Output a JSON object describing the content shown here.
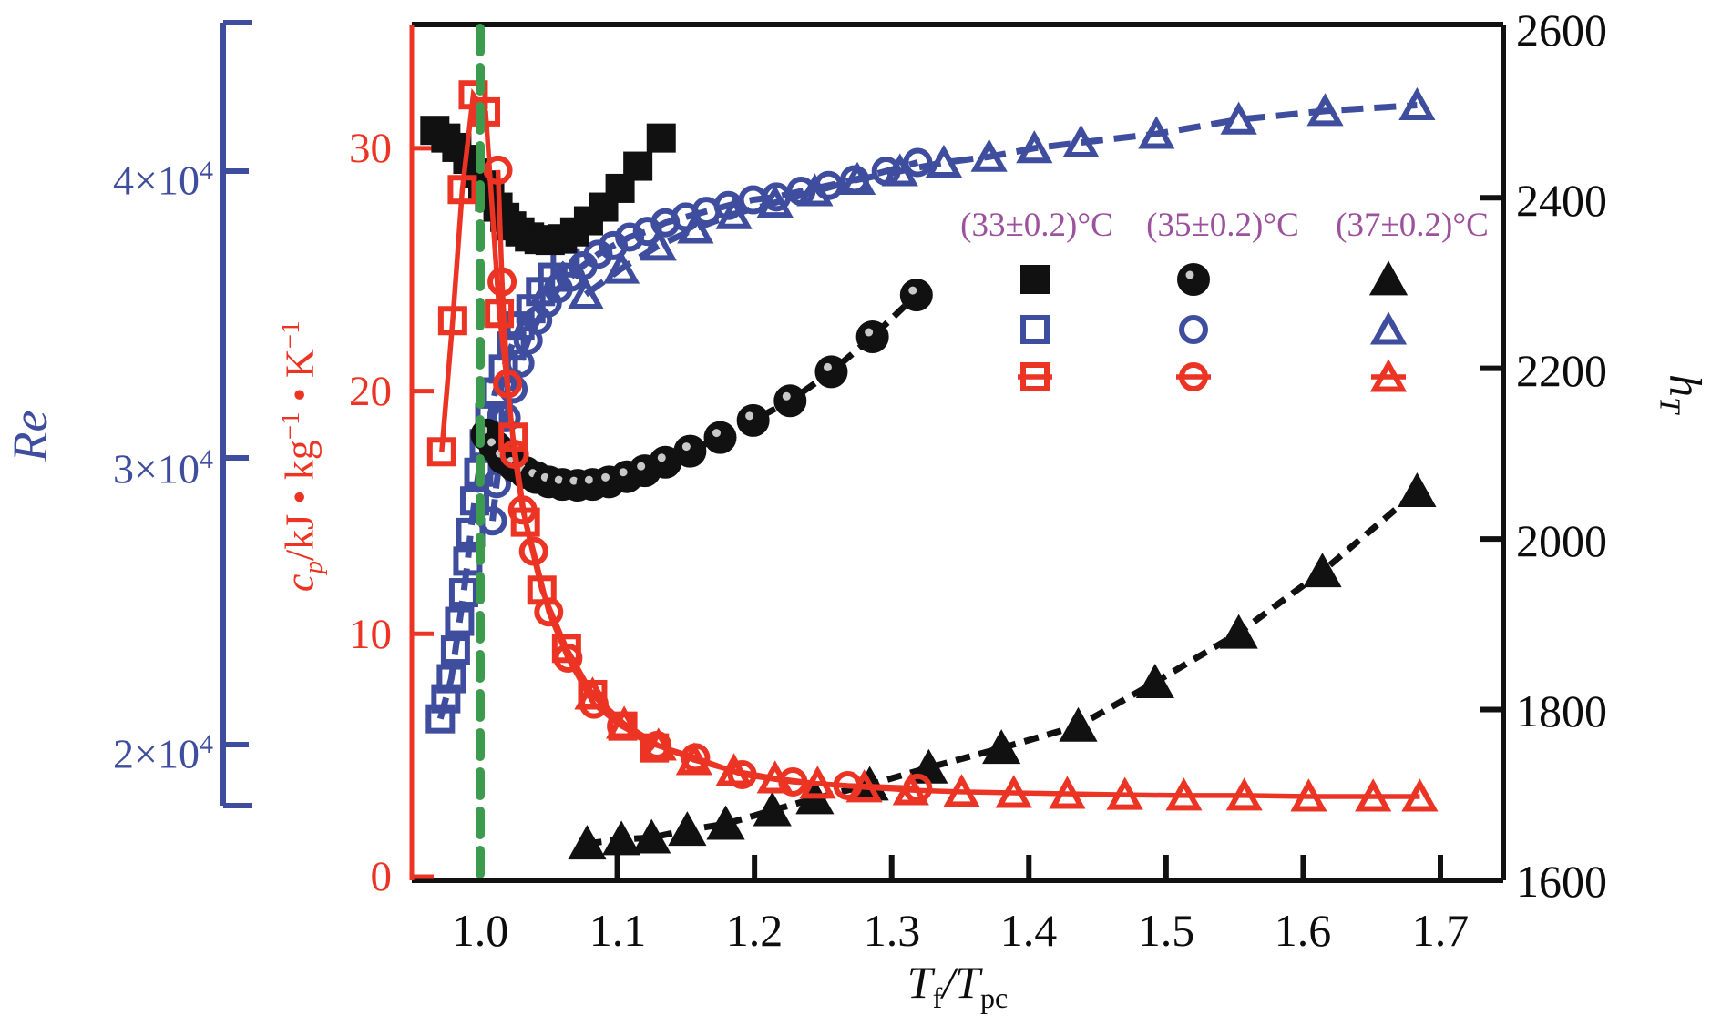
{
  "figure": {
    "background": "#ffffff",
    "colors": {
      "navy": "#3F4D9E",
      "red": "#EC3424",
      "green": "#3C9B4C",
      "purple": "#9C519D",
      "black": "#111111"
    },
    "axes": {
      "x": {
        "label": {
          "t1": "T",
          "s1": "f",
          "slash": "/",
          "t2": "T",
          "s2": "pc"
        },
        "ticks": [
          {
            "label": "1.0",
            "value": 1.0
          },
          {
            "label": "1.1",
            "value": 1.1
          },
          {
            "label": "1.2",
            "value": 1.2
          },
          {
            "label": "1.3",
            "value": 1.3
          },
          {
            "label": "1.4",
            "value": 1.4
          },
          {
            "label": "1.5",
            "value": 1.5
          },
          {
            "label": "1.6",
            "value": 1.6
          },
          {
            "label": "1.7",
            "value": 1.7
          }
        ]
      },
      "re": {
        "name": "Re",
        "ticks": [
          {
            "base": "2×10",
            "sup": "4",
            "value": 20000
          },
          {
            "base": "3×10",
            "sup": "4",
            "value": 30000
          },
          {
            "base": "4×10",
            "sup": "4",
            "value": 40000
          }
        ]
      },
      "cp": {
        "label": {
          "c": "c",
          "csub": "p",
          "mid": "/kJ • kg",
          "sup1": "−1",
          "dot": " • K",
          "sup2": "−1"
        },
        "ticks": [
          {
            "label": "0",
            "value": 0
          },
          {
            "label": "10",
            "value": 10
          },
          {
            "label": "20",
            "value": 20
          },
          {
            "label": "30",
            "value": 30
          }
        ]
      },
      "ht": {
        "label": {
          "base": "h",
          "sub": "T"
        },
        "ticks": [
          {
            "label": "1600",
            "value": 1600
          },
          {
            "label": "1800",
            "value": 1800
          },
          {
            "label": "2000",
            "value": 2000
          },
          {
            "label": "2200",
            "value": 2200
          },
          {
            "label": "2400",
            "value": 2400
          },
          {
            "label": "2600",
            "value": 2600
          }
        ]
      }
    }
  },
  "legend": {
    "headers": [
      "(33±0.2)°C",
      "(35±0.2)°C",
      "(37±0.2)°C"
    ],
    "rows": [
      {
        "color": "#111111",
        "filled": true,
        "hbar": false
      },
      {
        "color": "#3F4D9E",
        "filled": false,
        "hbar": false
      },
      {
        "color": "#EC3424",
        "filled": false,
        "hbar": true
      }
    ],
    "column_markers": [
      "square",
      "circle",
      "triangle"
    ]
  },
  "chart_data": {
    "type": "scatter",
    "title": "",
    "xlabel": "Tf/Tpc",
    "x_range": [
      0.951,
      1.745
    ],
    "critical_line": {
      "x": 1.0,
      "color": "#3C9B4C",
      "style": "dashed"
    },
    "axis_ranges": {
      "cp": [
        0,
        35.2
      ],
      "ht": [
        1600,
        2603
      ],
      "re": [
        17900,
        45200
      ]
    },
    "series": [
      {
        "id": "ht-33C",
        "temp": "(33±0.2)°C",
        "axis": "ht",
        "marker": "square",
        "filled": true,
        "color": "#111111",
        "dash": "16 10",
        "x": [
          0.967,
          0.975,
          0.983,
          0.991,
          0.997,
          1.002,
          1.007,
          1.013,
          1.018,
          1.023,
          1.029,
          1.036,
          1.043,
          1.051,
          1.06,
          1.069,
          1.079,
          1.09,
          1.102,
          1.115,
          1.132
        ],
        "y": [
          2479,
          2470,
          2459,
          2445,
          2429,
          2415,
          2401,
          2389,
          2377,
          2367,
          2360,
          2354,
          2351,
          2350,
          2352,
          2360,
          2373,
          2389,
          2411,
          2437,
          2470
        ]
      },
      {
        "id": "ht-35C",
        "temp": "(35±0.2)°C",
        "axis": "ht",
        "marker": "circle",
        "filled": true,
        "color": "#111111",
        "dash": "16 10",
        "x": [
          1.005,
          1.011,
          1.017,
          1.025,
          1.033,
          1.041,
          1.05,
          1.06,
          1.071,
          1.082,
          1.094,
          1.107,
          1.12,
          1.135,
          1.153,
          1.175,
          1.199,
          1.226,
          1.256,
          1.286,
          1.318
        ],
        "y": [
          2122,
          2108,
          2095,
          2086,
          2078,
          2072,
          2067,
          2064,
          2063,
          2064,
          2067,
          2073,
          2080,
          2090,
          2103,
          2119,
          2139,
          2162,
          2196,
          2237,
          2286
        ]
      },
      {
        "id": "ht-37C",
        "temp": "(37±0.2)°C",
        "axis": "ht",
        "marker": "triangle",
        "filled": true,
        "color": "#111111",
        "dash": "16 10",
        "x": [
          1.078,
          1.103,
          1.125,
          1.151,
          1.179,
          1.213,
          1.244,
          1.284,
          1.327,
          1.38,
          1.436,
          1.492,
          1.553,
          1.614,
          1.683
        ],
        "y": [
          1643,
          1648,
          1650,
          1659,
          1666,
          1682,
          1696,
          1712,
          1732,
          1755,
          1781,
          1832,
          1890,
          1962,
          2056
        ]
      },
      {
        "id": "re-33C",
        "temp": "(33±0.2)°C",
        "axis": "re",
        "marker": "square",
        "filled": false,
        "color": "#3F4D9E",
        "dash": "24 12",
        "x": [
          0.971,
          0.975,
          0.979,
          0.982,
          0.985,
          0.988,
          0.991,
          0.993,
          0.996,
          0.999,
          1.003,
          1.007,
          1.011,
          1.017,
          1.023,
          1.029,
          1.037,
          1.044,
          1.053,
          1.062
        ],
        "y": [
          20900,
          21600,
          22300,
          23300,
          24300,
          25300,
          26400,
          27400,
          28500,
          29500,
          30500,
          31400,
          32300,
          33100,
          33900,
          34600,
          35200,
          35800,
          36300,
          36800
        ]
      },
      {
        "id": "re-35C",
        "temp": "(35±0.2)°C",
        "axis": "re",
        "marker": "circle",
        "filled": false,
        "color": "#3F4D9E",
        "dash": "24 12",
        "x": [
          1.009,
          1.012,
          1.015,
          1.019,
          1.024,
          1.029,
          1.035,
          1.042,
          1.049,
          1.057,
          1.066,
          1.075,
          1.086,
          1.097,
          1.109,
          1.122,
          1.135,
          1.15,
          1.165,
          1.181,
          1.199,
          1.216,
          1.234,
          1.254,
          1.273,
          1.296,
          1.319
        ],
        "y": [
          27800,
          29100,
          30300,
          31400,
          32400,
          33300,
          34100,
          34800,
          35400,
          35900,
          36300,
          36700,
          37100,
          37400,
          37700,
          37900,
          38200,
          38400,
          38600,
          38800,
          39000,
          39100,
          39300,
          39500,
          39700,
          40000,
          40300
        ]
      },
      {
        "id": "re-37C",
        "temp": "(37±0.2)°C",
        "axis": "re",
        "marker": "triangle",
        "filled": false,
        "color": "#3F4D9E",
        "dash": "24 12",
        "x": [
          1.077,
          1.103,
          1.13,
          1.157,
          1.185,
          1.215,
          1.244,
          1.275,
          1.306,
          1.338,
          1.371,
          1.404,
          1.438,
          1.493,
          1.553,
          1.616,
          1.683
        ],
        "y": [
          35700,
          36600,
          37400,
          38000,
          38500,
          38900,
          39300,
          39700,
          40000,
          40300,
          40500,
          40800,
          41000,
          41300,
          41800,
          42100,
          42300
        ]
      },
      {
        "id": "cp-33C",
        "temp": "(33±0.2)°C",
        "axis": "cp",
        "marker": "square",
        "filled": false,
        "color": "#EC3424",
        "dash": "",
        "x": [
          0.972,
          0.98,
          0.987,
          0.995,
          1.004,
          1.014,
          1.024,
          1.033,
          1.045,
          1.063,
          1.082,
          1.104,
          1.127
        ],
        "y": [
          17.5,
          22.9,
          28.3,
          32.2,
          31.5,
          23.2,
          18.1,
          14.6,
          11.8,
          9.4,
          7.5,
          6.2,
          5.3
        ]
      },
      {
        "id": "cp-35C",
        "temp": "(35±0.2)°C",
        "axis": "cp",
        "marker": "circle",
        "filled": false,
        "color": "#EC3424",
        "dash": "",
        "x": [
          1.013,
          1.016,
          1.02,
          1.025,
          1.031,
          1.039,
          1.05,
          1.064,
          1.083,
          1.103,
          1.129,
          1.157,
          1.191,
          1.228,
          1.268,
          1.319
        ],
        "y": [
          29.1,
          24.5,
          20.3,
          17.4,
          15.1,
          13.4,
          10.9,
          9.0,
          7.1,
          6.2,
          5.4,
          4.9,
          4.2,
          3.9,
          3.75,
          3.64
        ]
      },
      {
        "id": "cp-37C",
        "temp": "(37±0.2)°C",
        "axis": "cp",
        "marker": "triangle",
        "filled": false,
        "color": "#EC3424",
        "dash": "",
        "x": [
          1.082,
          1.105,
          1.13,
          1.156,
          1.185,
          1.215,
          1.246,
          1.28,
          1.314,
          1.351,
          1.389,
          1.428,
          1.47,
          1.513,
          1.557,
          1.604,
          1.651,
          1.685
        ],
        "y": [
          7.5,
          6.3,
          5.4,
          4.8,
          4.35,
          4.05,
          3.83,
          3.68,
          3.56,
          3.49,
          3.45,
          3.41,
          3.37,
          3.34,
          3.34,
          3.3,
          3.3,
          3.3
        ]
      }
    ]
  }
}
